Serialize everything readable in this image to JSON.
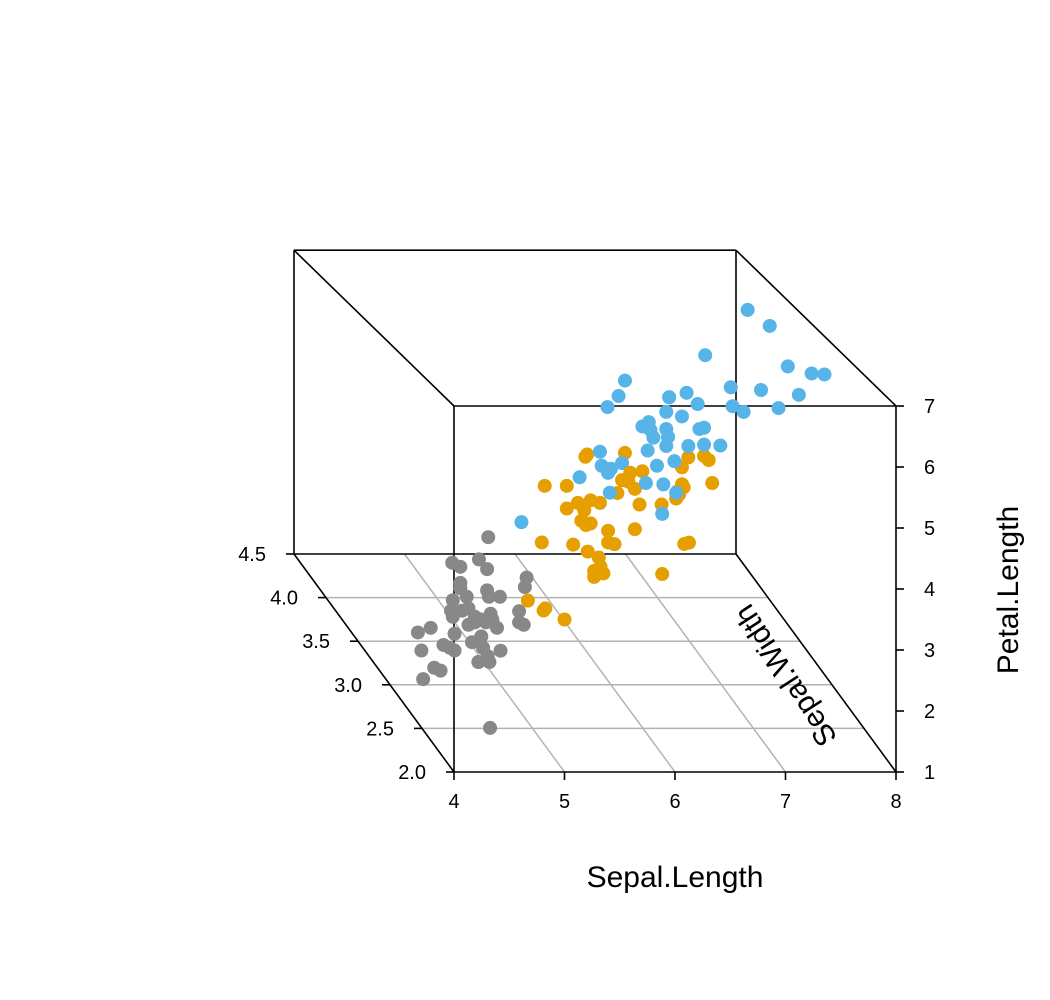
{
  "chart_data": {
    "type": "scatter",
    "subtype": "3d-scatter",
    "x_axis": {
      "label": "Sepal.Length",
      "range": [
        4,
        8
      ],
      "ticks": [
        "4",
        "5",
        "6",
        "7",
        "8"
      ]
    },
    "y_axis": {
      "label": "Sepal.Width",
      "range": [
        2.0,
        4.5
      ],
      "ticks": [
        "2.0",
        "2.5",
        "3.0",
        "3.5",
        "4.0",
        "4.5"
      ]
    },
    "z_axis": {
      "label": "Petal.Length",
      "range": [
        1,
        7
      ],
      "ticks": [
        "1",
        "2",
        "3",
        "4",
        "5",
        "6",
        "7"
      ]
    },
    "grid": "floor",
    "series": [
      {
        "color": "#888888",
        "points": [
          [
            5.1,
            3.5,
            1.4
          ],
          [
            4.9,
            3.0,
            1.4
          ],
          [
            4.7,
            3.2,
            1.3
          ],
          [
            4.6,
            3.1,
            1.5
          ],
          [
            5.0,
            3.6,
            1.4
          ],
          [
            5.4,
            3.9,
            1.7
          ],
          [
            4.6,
            3.4,
            1.4
          ],
          [
            5.0,
            3.4,
            1.5
          ],
          [
            4.4,
            2.9,
            1.4
          ],
          [
            4.9,
            3.1,
            1.5
          ],
          [
            5.4,
            3.7,
            1.5
          ],
          [
            4.8,
            3.4,
            1.6
          ],
          [
            4.8,
            3.0,
            1.4
          ],
          [
            4.3,
            3.0,
            1.1
          ],
          [
            5.8,
            4.0,
            1.2
          ],
          [
            5.7,
            4.4,
            1.5
          ],
          [
            5.4,
            3.9,
            1.3
          ],
          [
            5.1,
            3.5,
            1.4
          ],
          [
            5.7,
            3.8,
            1.7
          ],
          [
            5.1,
            3.8,
            1.5
          ],
          [
            5.4,
            3.4,
            1.7
          ],
          [
            5.1,
            3.7,
            1.5
          ],
          [
            4.6,
            3.6,
            1.0
          ],
          [
            5.1,
            3.3,
            1.7
          ],
          [
            4.8,
            3.4,
            1.9
          ],
          [
            5.0,
            3.0,
            1.6
          ],
          [
            5.0,
            3.4,
            1.6
          ],
          [
            5.2,
            3.5,
            1.5
          ],
          [
            5.2,
            3.4,
            1.4
          ],
          [
            4.7,
            3.2,
            1.6
          ],
          [
            4.8,
            3.1,
            1.6
          ],
          [
            5.4,
            3.4,
            1.5
          ],
          [
            5.2,
            4.1,
            1.5
          ],
          [
            5.5,
            4.2,
            1.4
          ],
          [
            4.9,
            3.1,
            1.5
          ],
          [
            5.0,
            3.2,
            1.2
          ],
          [
            5.5,
            3.5,
            1.3
          ],
          [
            4.9,
            3.6,
            1.4
          ],
          [
            4.4,
            3.0,
            1.3
          ],
          [
            5.1,
            3.4,
            1.5
          ],
          [
            5.0,
            3.5,
            1.3
          ],
          [
            4.5,
            2.3,
            1.3
          ],
          [
            4.4,
            3.2,
            1.3
          ],
          [
            5.0,
            3.5,
            1.6
          ],
          [
            5.1,
            3.8,
            1.9
          ],
          [
            4.8,
            3.0,
            1.4
          ],
          [
            5.1,
            3.8,
            1.6
          ],
          [
            4.6,
            3.2,
            1.4
          ],
          [
            5.3,
            3.7,
            1.5
          ],
          [
            5.0,
            3.3,
            1.4
          ]
        ]
      },
      {
        "color": "#E69F00",
        "points": [
          [
            7.0,
            3.2,
            4.7
          ],
          [
            6.4,
            3.2,
            4.5
          ],
          [
            6.9,
            3.1,
            4.9
          ],
          [
            5.5,
            2.3,
            4.0
          ],
          [
            6.5,
            2.8,
            4.6
          ],
          [
            5.7,
            2.8,
            4.5
          ],
          [
            6.3,
            3.3,
            4.7
          ],
          [
            4.9,
            2.4,
            3.3
          ],
          [
            6.6,
            2.9,
            4.6
          ],
          [
            5.2,
            2.7,
            3.9
          ],
          [
            5.0,
            2.0,
            3.5
          ],
          [
            5.9,
            3.0,
            4.2
          ],
          [
            6.0,
            2.2,
            4.0
          ],
          [
            6.1,
            2.9,
            4.7
          ],
          [
            5.6,
            2.9,
            3.6
          ],
          [
            6.7,
            3.1,
            4.4
          ],
          [
            5.6,
            3.0,
            4.5
          ],
          [
            5.8,
            2.7,
            4.1
          ],
          [
            6.2,
            2.2,
            4.5
          ],
          [
            5.6,
            2.5,
            3.9
          ],
          [
            5.9,
            3.2,
            4.8
          ],
          [
            6.1,
            2.8,
            4.0
          ],
          [
            6.3,
            2.5,
            4.9
          ],
          [
            6.1,
            2.8,
            4.7
          ],
          [
            6.4,
            2.9,
            4.3
          ],
          [
            6.6,
            3.0,
            4.4
          ],
          [
            6.8,
            2.8,
            4.8
          ],
          [
            6.7,
            3.0,
            5.0
          ],
          [
            6.0,
            2.9,
            4.5
          ],
          [
            5.7,
            2.6,
            3.5
          ],
          [
            5.5,
            2.4,
            3.8
          ],
          [
            5.5,
            2.4,
            3.7
          ],
          [
            5.8,
            2.7,
            3.9
          ],
          [
            6.0,
            2.7,
            5.1
          ],
          [
            5.4,
            3.0,
            4.5
          ],
          [
            6.0,
            3.4,
            4.5
          ],
          [
            6.7,
            3.1,
            4.7
          ],
          [
            6.3,
            2.3,
            4.4
          ],
          [
            5.6,
            3.0,
            4.1
          ],
          [
            5.5,
            2.5,
            4.0
          ],
          [
            5.5,
            2.6,
            4.4
          ],
          [
            6.1,
            3.0,
            4.6
          ],
          [
            5.8,
            2.6,
            4.0
          ],
          [
            5.0,
            2.3,
            3.3
          ],
          [
            5.6,
            2.7,
            4.2
          ],
          [
            5.7,
            3.0,
            4.2
          ],
          [
            5.7,
            2.9,
            4.2
          ],
          [
            6.2,
            2.9,
            4.3
          ],
          [
            5.1,
            2.5,
            3.0
          ],
          [
            5.7,
            2.8,
            4.1
          ]
        ]
      },
      {
        "color": "#56B4E9",
        "points": [
          [
            6.3,
            3.3,
            6.0
          ],
          [
            5.8,
            2.7,
            5.1
          ],
          [
            7.1,
            3.0,
            5.9
          ],
          [
            6.3,
            2.9,
            5.6
          ],
          [
            6.5,
            3.0,
            5.8
          ],
          [
            7.6,
            3.0,
            6.6
          ],
          [
            4.9,
            2.5,
            4.5
          ],
          [
            7.3,
            2.9,
            6.3
          ],
          [
            6.7,
            2.5,
            5.8
          ],
          [
            7.2,
            3.6,
            6.1
          ],
          [
            6.5,
            3.2,
            5.1
          ],
          [
            6.4,
            2.7,
            5.3
          ],
          [
            6.8,
            3.0,
            5.5
          ],
          [
            5.7,
            2.5,
            5.0
          ],
          [
            5.8,
            2.8,
            5.1
          ],
          [
            6.4,
            3.2,
            5.3
          ],
          [
            6.5,
            3.0,
            5.5
          ],
          [
            7.7,
            3.8,
            6.7
          ],
          [
            7.7,
            2.6,
            6.9
          ],
          [
            6.0,
            2.2,
            5.0
          ],
          [
            6.9,
            3.2,
            5.7
          ],
          [
            5.6,
            2.8,
            4.9
          ],
          [
            7.7,
            2.8,
            6.7
          ],
          [
            6.3,
            2.7,
            4.9
          ],
          [
            6.7,
            3.3,
            5.7
          ],
          [
            7.2,
            3.2,
            6.0
          ],
          [
            6.2,
            2.8,
            4.8
          ],
          [
            6.1,
            3.0,
            4.9
          ],
          [
            6.4,
            2.8,
            5.6
          ],
          [
            7.2,
            3.0,
            5.8
          ],
          [
            7.4,
            2.8,
            6.1
          ],
          [
            7.9,
            3.8,
            6.4
          ],
          [
            6.4,
            2.8,
            5.6
          ],
          [
            6.3,
            2.8,
            5.1
          ],
          [
            6.1,
            2.6,
            5.6
          ],
          [
            7.7,
            3.0,
            6.1
          ],
          [
            6.3,
            3.4,
            5.6
          ],
          [
            6.4,
            3.1,
            5.5
          ],
          [
            6.0,
            3.0,
            4.8
          ],
          [
            6.9,
            3.1,
            5.4
          ],
          [
            6.7,
            3.1,
            5.6
          ],
          [
            6.9,
            3.1,
            5.1
          ],
          [
            5.8,
            2.7,
            5.1
          ],
          [
            6.8,
            3.2,
            5.9
          ],
          [
            6.7,
            3.3,
            5.7
          ],
          [
            6.7,
            3.0,
            5.2
          ],
          [
            6.3,
            2.5,
            5.0
          ],
          [
            6.5,
            3.0,
            5.2
          ],
          [
            6.2,
            3.4,
            5.4
          ],
          [
            5.9,
            3.0,
            5.1
          ]
        ]
      }
    ]
  }
}
